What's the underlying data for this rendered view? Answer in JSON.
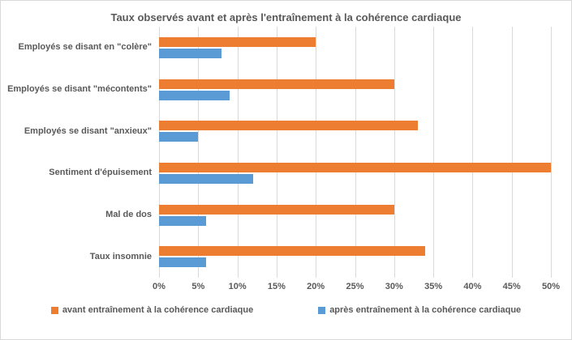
{
  "chart_data": {
    "type": "bar",
    "orientation": "horizontal",
    "title": "Taux observés avant et après l'entraînement à la cohérence cardiaque",
    "categories": [
      "Employés se disant en \"colère\"",
      "Employés se disant \"mécontents\"",
      "Employés se disant \"anxieux\"",
      "Sentiment d'épuisement",
      "Mal de dos",
      "Taux insomnie"
    ],
    "series": [
      {
        "name": "avant entraînement à la cohérence cardiaque",
        "color": "#ED7D31",
        "values": [
          20,
          30,
          33,
          50,
          30,
          34
        ]
      },
      {
        "name": "après entraînement à la cohérence cardiaque",
        "color": "#5B9BD5",
        "values": [
          8,
          9,
          5,
          12,
          6,
          6
        ]
      }
    ],
    "xlabel": "",
    "ylabel": "",
    "xlim": [
      0,
      50
    ],
    "x_ticks": [
      "0%",
      "5%",
      "10%",
      "15%",
      "20%",
      "25%",
      "30%",
      "35%",
      "40%",
      "45%",
      "50%"
    ],
    "value_unit": "%",
    "grid": true,
    "legend_position": "bottom",
    "colors": {
      "text": "#595959",
      "gridline": "#D9D9D9",
      "border": "#D9D9D9",
      "background": "#FFFFFF"
    }
  }
}
